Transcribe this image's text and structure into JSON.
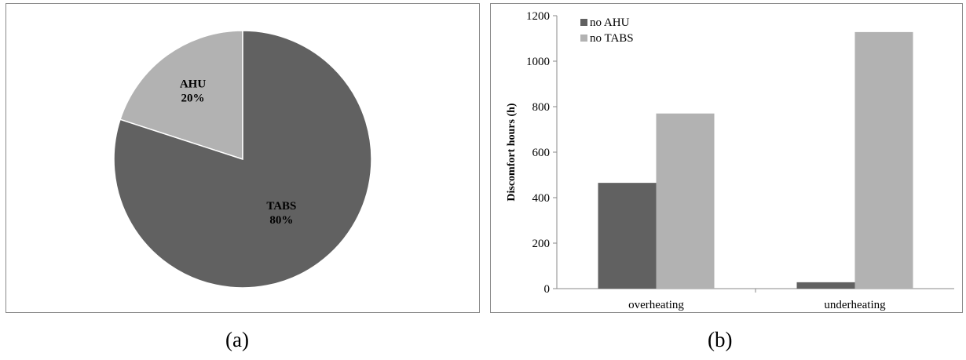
{
  "chart_data": [
    {
      "type": "pie",
      "slices": [
        {
          "label": "AHU",
          "value": 20,
          "percent_label": "20%",
          "color": "#b2b2b2"
        },
        {
          "label": "TABS",
          "value": 80,
          "percent_label": "80%",
          "color": "#616161"
        }
      ]
    },
    {
      "type": "bar",
      "ylabel": "Discomfort hours (h)",
      "categories": [
        "overheating",
        "underheating"
      ],
      "series": [
        {
          "name": "no AHU",
          "values": [
            465,
            28
          ],
          "color": "#616161"
        },
        {
          "name": "no TABS",
          "values": [
            770,
            1128
          ],
          "color": "#b2b2b2"
        }
      ],
      "ylim": [
        0,
        1200
      ],
      "yticks": [
        0,
        200,
        400,
        600,
        800,
        1000,
        1200
      ],
      "legend_position": "top-left",
      "grid": false
    }
  ],
  "captions": {
    "a": "(a)",
    "b": "(b)"
  }
}
